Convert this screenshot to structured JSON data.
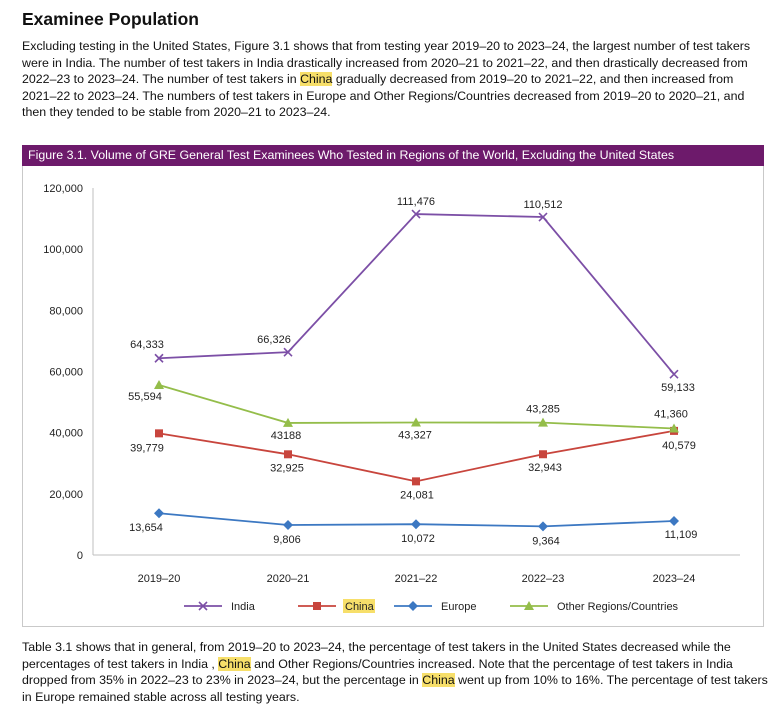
{
  "heading": "Examinee Population",
  "para1": [
    {
      "t": "Excluding testing in the United States, Figure 3.1 shows that from testing year 2019–20 to 2023–24, the largest number of test takers were in India.  The  number of test takers in India drastically increased from 2020–21 to 2021–22, and then drastically decreased from 2022–23 to 2023–24. The number of test takers in ",
      "h": false
    },
    {
      "t": "China",
      "h": true
    },
    {
      "t": " gradually decreased from 2019–20 to 2021–22, and then increased from 2021–22 to 2023–24. The numbers of test takers in Europe and Other Regions/Countries decreased from 2019–20 to 2020–21, and then they tended to be stable from 2020–21 to 2023–24.",
      "h": false
    }
  ],
  "figure_title": "Figure 3.1. Volume of GRE General Test Examinees Who Tested in Regions of the World, Excluding the United States",
  "para2": [
    {
      "t": "Table 3.1 shows that in general,  from 2019–20 to 2023–24, the percentage of test takers in the United States decreased while the percentages of test takers in India , ",
      "h": false
    },
    {
      "t": "China",
      "h": true
    },
    {
      "t": " and Other Regions/Countries increased. Note that the percentage of test takers in India dropped from 35% in 2022–23 to 23% in 2023–24, but the percentage in ",
      "h": false
    },
    {
      "t": "China",
      "h": true
    },
    {
      "t": " went up from 10% to 16%. The percentage of test takers in Europe remained stable across all testing years.",
      "h": false
    }
  ],
  "chart_data": {
    "type": "line",
    "title": "Figure 3.1. Volume of GRE General Test Examinees Who Tested in Regions of the World, Excluding the United States",
    "categories": [
      "2019–20",
      "2020–21",
      "2021–22",
      "2022–23",
      "2023–24"
    ],
    "ylim": [
      0,
      120000
    ],
    "yticks": [
      0,
      20000,
      40000,
      60000,
      80000,
      100000,
      120000
    ],
    "ytick_labels": [
      "0",
      "20,000",
      "40,000",
      "60,000",
      "80,000",
      "100,000",
      "120,000"
    ],
    "legend_position": "bottom",
    "grid": false,
    "series": [
      {
        "name": "India",
        "color": "#7c4fa6",
        "marker": "x",
        "highlight": false,
        "values": [
          64333,
          66326,
          111476,
          110512,
          59133
        ],
        "labels": [
          "64,333",
          "66,326",
          "111,476",
          "110,512",
          "59,133"
        ]
      },
      {
        "name": "China",
        "color": "#c8453d",
        "marker": "square",
        "highlight": true,
        "values": [
          39779,
          32925,
          24081,
          32943,
          40579
        ],
        "labels": [
          "39,779",
          "32,925",
          "24,081",
          "32,943",
          "40,579"
        ]
      },
      {
        "name": "Europe",
        "color": "#3c78c2",
        "marker": "diamond",
        "highlight": false,
        "values": [
          13654,
          9806,
          10072,
          9364,
          11109
        ],
        "labels": [
          "13,654",
          "9,806",
          "10,072",
          "9,364",
          "11,109"
        ]
      },
      {
        "name": "Other Regions/Countries",
        "color": "#94bd4a",
        "marker": "triangle",
        "highlight": false,
        "values": [
          55594,
          43188,
          43327,
          43285,
          41360
        ],
        "labels": [
          "55,594",
          "43188",
          "43,327",
          "43,285",
          "41,360"
        ]
      }
    ]
  }
}
